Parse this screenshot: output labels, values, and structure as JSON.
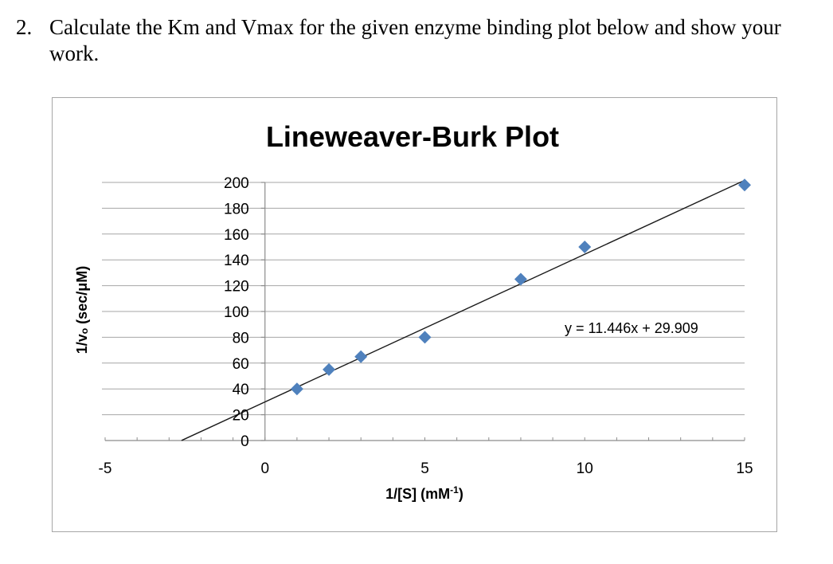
{
  "question": {
    "number": "2.",
    "text": "Calculate the Km and Vmax for the given enzyme binding plot below and show your work."
  },
  "chart_data": {
    "type": "scatter",
    "title": "Lineweaver-Burk Plot",
    "xlabel": "1/[S] (mM",
    "xlabel_sup": "-1",
    "xlabel_tail": ")",
    "ylabel": "1/vₒ (sec/μM)",
    "xlim": [
      -5,
      15
    ],
    "ylim": [
      0,
      200
    ],
    "x_ticks": [
      -5,
      0,
      5,
      10,
      15
    ],
    "x_tick_labels": [
      "-5",
      "0",
      "5",
      "10",
      "15"
    ],
    "y_ticks": [
      0,
      20,
      40,
      60,
      80,
      100,
      120,
      140,
      160,
      180,
      200
    ],
    "y_tick_labels": [
      "0",
      "20",
      "40",
      "60",
      "80",
      "100",
      "120",
      "140",
      "160",
      "180",
      "200"
    ],
    "grid": true,
    "series": [
      {
        "x": [
          1,
          2,
          3,
          5,
          8,
          10,
          15
        ],
        "y": [
          40,
          55,
          65,
          80,
          125,
          150,
          198
        ],
        "color": "#4f81bd",
        "marker": "diamond"
      }
    ],
    "trendline": {
      "slope": 11.446,
      "intercept": 29.909,
      "x_range": [
        -2.61,
        15
      ],
      "color": "#1a1a1a",
      "equation": "y = 11.446x + 29.909"
    }
  }
}
